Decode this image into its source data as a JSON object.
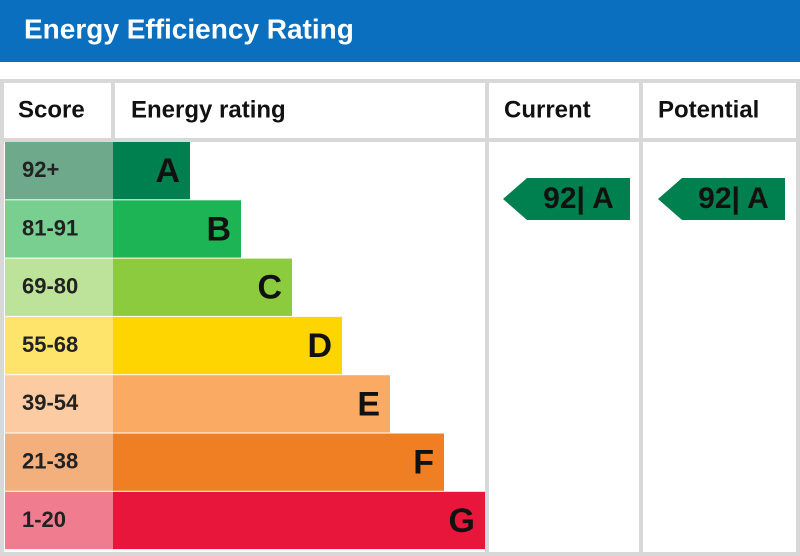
{
  "header": {
    "title": "Energy Efficiency Rating"
  },
  "table": {
    "headers": [
      "Score",
      "Energy rating",
      "Current",
      "Potential"
    ],
    "bands": [
      {
        "score": "92+",
        "letter": "A",
        "color": "#00804f",
        "score_color": "#6da98a"
      },
      {
        "score": "81-91",
        "letter": "B",
        "color": "#1db455",
        "score_color": "#78cf8f"
      },
      {
        "score": "69-80",
        "letter": "C",
        "color": "#8cca3e",
        "score_color": "#bde39a"
      },
      {
        "score": "55-68",
        "letter": "D",
        "color": "#fed500",
        "score_color": "#ffe46b"
      },
      {
        "score": "39-54",
        "letter": "E",
        "color": "#fbaa64",
        "score_color": "#fdcba2"
      },
      {
        "score": "21-38",
        "letter": "F",
        "color": "#ef7f22",
        "score_color": "#f4b07c"
      },
      {
        "score": "1-20",
        "letter": "G",
        "color": "#e9163c",
        "score_color": "#f07d8f"
      }
    ],
    "current": {
      "label": "92| A",
      "band": "A",
      "color": "#00804f"
    },
    "potential": {
      "label": "92| A",
      "band": "A",
      "color": "#00804f"
    }
  }
}
